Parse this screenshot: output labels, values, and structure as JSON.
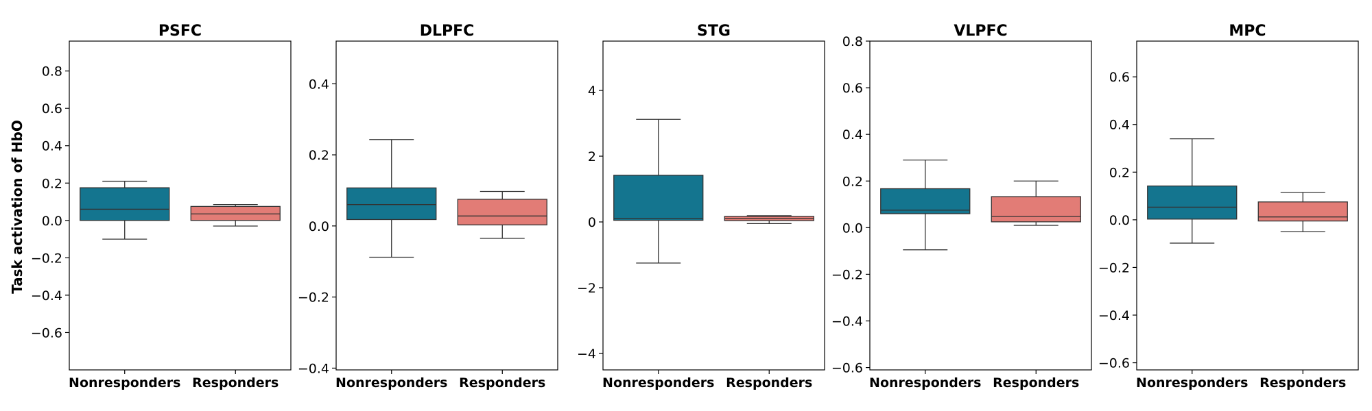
{
  "colors": {
    "Nonresponders": "#14758f",
    "Responders": "#e27c76",
    "edge": "#333333",
    "axis": "#000000"
  },
  "chart_data": [
    {
      "type": "box",
      "title": "PSFC",
      "ylabel": "Task activation of HbO",
      "categories": [
        "Nonresponders",
        "Responders"
      ],
      "ylim": [
        -0.8,
        0.96
      ],
      "yticks": [
        -0.6,
        -0.4,
        -0.2,
        0.0,
        0.2,
        0.4,
        0.6,
        0.8
      ],
      "ytick_labels": [
        "−0.6",
        "−0.4",
        "−0.2",
        "0.0",
        "0.2",
        "0.4",
        "0.6",
        "0.8"
      ],
      "boxes": [
        {
          "category": "Nonresponders",
          "whisker_low": -0.1,
          "q1": 0.0,
          "median": 0.06,
          "q3": 0.175,
          "whisker_high": 0.21
        },
        {
          "category": "Responders",
          "whisker_low": -0.03,
          "q1": 0.0,
          "median": 0.035,
          "q3": 0.075,
          "whisker_high": 0.085
        }
      ]
    },
    {
      "type": "box",
      "title": "DLPFC",
      "categories": [
        "Nonresponders",
        "Responders"
      ],
      "ylim": [
        -0.405,
        0.52
      ],
      "yticks": [
        -0.4,
        -0.2,
        0.0,
        0.2,
        0.4
      ],
      "ytick_labels": [
        "−0.4",
        "−0.2",
        "0.0",
        "0.2",
        "0.4"
      ],
      "boxes": [
        {
          "category": "Nonresponders",
          "whisker_low": -0.088,
          "q1": 0.018,
          "median": 0.06,
          "q3": 0.107,
          "whisker_high": 0.243
        },
        {
          "category": "Responders",
          "whisker_low": -0.035,
          "q1": 0.003,
          "median": 0.028,
          "q3": 0.075,
          "whisker_high": 0.097
        }
      ]
    },
    {
      "type": "box",
      "title": "STG",
      "categories": [
        "Nonresponders",
        "Responders"
      ],
      "ylim": [
        -4.5,
        5.5
      ],
      "yticks": [
        -4,
        -2,
        0,
        2,
        4
      ],
      "ytick_labels": [
        "−4",
        "−2",
        "0",
        "2",
        "4"
      ],
      "boxes": [
        {
          "category": "Nonresponders",
          "whisker_low": -1.25,
          "q1": 0.05,
          "median": 0.1,
          "q3": 1.42,
          "whisker_high": 3.12
        },
        {
          "category": "Responders",
          "whisker_low": -0.05,
          "q1": 0.04,
          "median": 0.1,
          "q3": 0.17,
          "whisker_high": 0.19
        }
      ]
    },
    {
      "type": "box",
      "title": "VLPFC",
      "categories": [
        "Nonresponders",
        "Responders"
      ],
      "ylim": [
        -0.61,
        0.8
      ],
      "yticks": [
        -0.6,
        -0.4,
        -0.2,
        0.0,
        0.2,
        0.4,
        0.6,
        0.8
      ],
      "ytick_labels": [
        "−0.6",
        "−0.4",
        "−0.2",
        "0.0",
        "0.2",
        "0.4",
        "0.6",
        "0.8"
      ],
      "boxes": [
        {
          "category": "Nonresponders",
          "whisker_low": -0.095,
          "q1": 0.06,
          "median": 0.075,
          "q3": 0.167,
          "whisker_high": 0.29
        },
        {
          "category": "Responders",
          "whisker_low": 0.01,
          "q1": 0.025,
          "median": 0.048,
          "q3": 0.133,
          "whisker_high": 0.2
        }
      ]
    },
    {
      "type": "box",
      "title": "MPC",
      "categories": [
        "Nonresponders",
        "Responders"
      ],
      "ylim": [
        -0.63,
        0.75
      ],
      "yticks": [
        -0.6,
        -0.4,
        -0.2,
        0.0,
        0.2,
        0.4,
        0.6
      ],
      "ytick_labels": [
        "−0.6",
        "−0.4",
        "−0.2",
        "0.0",
        "0.2",
        "0.4",
        "0.6"
      ],
      "boxes": [
        {
          "category": "Nonresponders",
          "whisker_low": -0.098,
          "q1": 0.003,
          "median": 0.053,
          "q3": 0.142,
          "whisker_high": 0.34
        },
        {
          "category": "Responders",
          "whisker_low": -0.05,
          "q1": -0.005,
          "median": 0.012,
          "q3": 0.075,
          "whisker_high": 0.115
        }
      ]
    }
  ]
}
